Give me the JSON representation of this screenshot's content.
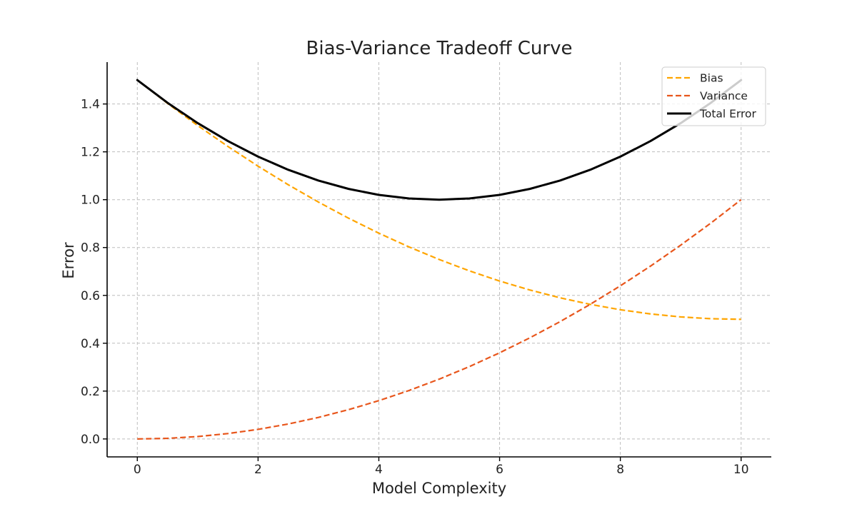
{
  "chart_data": {
    "type": "line",
    "title": "Bias-Variance Tradeoff Curve",
    "xlabel": "Model Complexity",
    "ylabel": "Error",
    "xlim": [
      -0.5,
      10.5
    ],
    "ylim": [
      -0.075,
      1.575
    ],
    "x_ticks": [
      0,
      2,
      4,
      6,
      8,
      10
    ],
    "y_ticks": [
      0.0,
      0.2,
      0.4,
      0.6,
      0.8,
      1.0,
      1.2,
      1.4
    ],
    "x_tick_labels": [
      "0",
      "2",
      "4",
      "6",
      "8",
      "10"
    ],
    "y_tick_labels": [
      "0.0",
      "0.2",
      "0.4",
      "0.6",
      "0.8",
      "1.0",
      "1.2",
      "1.4"
    ],
    "grid": true,
    "legend_position": "top-right",
    "x": [
      0,
      0.5,
      1,
      1.5,
      2,
      2.5,
      3,
      3.5,
      4,
      4.5,
      5,
      5.5,
      6,
      6.5,
      7,
      7.5,
      8,
      8.5,
      9,
      9.5,
      10
    ],
    "series": [
      {
        "name": "Bias",
        "style": "dashed",
        "color": "#ffa500",
        "values": [
          1.5,
          1.4025,
          1.31,
          1.2225,
          1.14,
          1.0625,
          0.99,
          0.9225,
          0.86,
          0.8025,
          0.75,
          0.7025,
          0.66,
          0.6225,
          0.59,
          0.5625,
          0.54,
          0.5225,
          0.51,
          0.5025,
          0.5
        ]
      },
      {
        "name": "Variance",
        "style": "dashed",
        "color": "#e8561c",
        "values": [
          0.0,
          0.0025,
          0.01,
          0.0225,
          0.04,
          0.0625,
          0.09,
          0.1225,
          0.16,
          0.2025,
          0.25,
          0.3025,
          0.36,
          0.4225,
          0.49,
          0.5625,
          0.64,
          0.7225,
          0.81,
          0.9025,
          1.0
        ]
      },
      {
        "name": "Total Error",
        "style": "solid",
        "color": "#000000",
        "values": [
          1.5,
          1.405,
          1.32,
          1.245,
          1.18,
          1.125,
          1.08,
          1.045,
          1.02,
          1.005,
          1.0,
          1.005,
          1.02,
          1.045,
          1.08,
          1.125,
          1.18,
          1.245,
          1.32,
          1.405,
          1.5
        ]
      }
    ]
  }
}
